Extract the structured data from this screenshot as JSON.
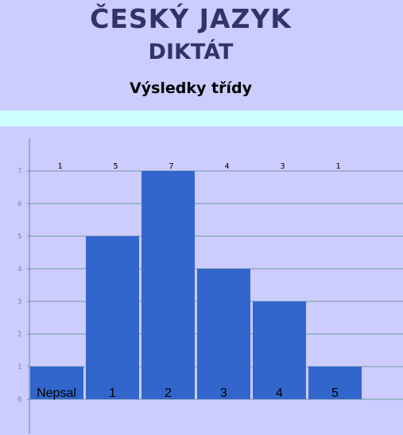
{
  "header": {
    "title": "ČESKÝ JAZYK",
    "subtitle": "DIKTÁT",
    "caption": "Výsledky třídy"
  },
  "colors": {
    "background": "#ccccff",
    "band": "#ccffff",
    "bar": "#3366cc",
    "grid": "#6f9a9a",
    "axis": "#5f8888"
  },
  "chart_data": {
    "type": "bar",
    "categories": [
      "Nepsal",
      "1",
      "2",
      "3",
      "4",
      "5"
    ],
    "values": [
      1,
      5,
      7,
      4,
      3,
      1
    ],
    "ylim": [
      0,
      7
    ],
    "yticks": [
      0,
      1,
      2,
      3,
      4,
      5,
      6,
      7
    ],
    "grid": true,
    "legend": "none"
  }
}
